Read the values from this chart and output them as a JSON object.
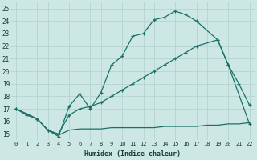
{
  "xlabel": "Humidex (Indice chaleur)",
  "bg_color": "#cde8e4",
  "line_color": "#1a7068",
  "grid_color": "#b0d0cb",
  "xlim": [
    -0.5,
    22.5
  ],
  "ylim": [
    14.5,
    25.5
  ],
  "xticks": [
    0,
    1,
    2,
    3,
    4,
    5,
    6,
    7,
    8,
    9,
    10,
    11,
    12,
    13,
    14,
    15,
    16,
    17,
    18,
    19,
    20,
    21,
    22
  ],
  "yticks": [
    15,
    16,
    17,
    18,
    19,
    20,
    21,
    22,
    23,
    24,
    25
  ],
  "curve1_x": [
    0,
    1,
    2,
    3,
    4,
    5,
    6,
    7,
    8,
    9,
    10,
    11,
    12,
    13,
    14,
    15,
    16,
    17,
    19,
    20,
    21,
    22
  ],
  "curve1_y": [
    17.0,
    16.5,
    16.2,
    15.3,
    14.8,
    17.2,
    18.2,
    17.0,
    18.3,
    20.5,
    21.2,
    22.8,
    23.0,
    24.1,
    24.3,
    24.8,
    24.5,
    24.0,
    22.5,
    20.5,
    19.0,
    17.3
  ],
  "curve2_x": [
    0,
    2,
    3,
    4,
    5,
    6,
    7,
    8,
    9,
    10,
    11,
    12,
    13,
    14,
    15,
    16,
    17,
    19,
    20,
    22
  ],
  "curve2_y": [
    17.0,
    16.2,
    15.3,
    15.0,
    16.5,
    17.0,
    17.2,
    17.5,
    18.0,
    18.5,
    19.0,
    19.5,
    20.0,
    20.5,
    21.0,
    21.5,
    22.0,
    22.5,
    20.5,
    15.8
  ],
  "curve3_x": [
    0,
    2,
    3,
    4,
    5,
    6,
    7,
    8,
    9,
    10,
    11,
    12,
    13,
    14,
    15,
    16,
    17,
    18,
    19,
    20,
    21,
    22
  ],
  "curve3_y": [
    17.0,
    16.2,
    15.3,
    14.9,
    15.3,
    15.4,
    15.4,
    15.4,
    15.5,
    15.5,
    15.5,
    15.5,
    15.5,
    15.6,
    15.6,
    15.6,
    15.6,
    15.7,
    15.7,
    15.8,
    15.8,
    15.9
  ]
}
